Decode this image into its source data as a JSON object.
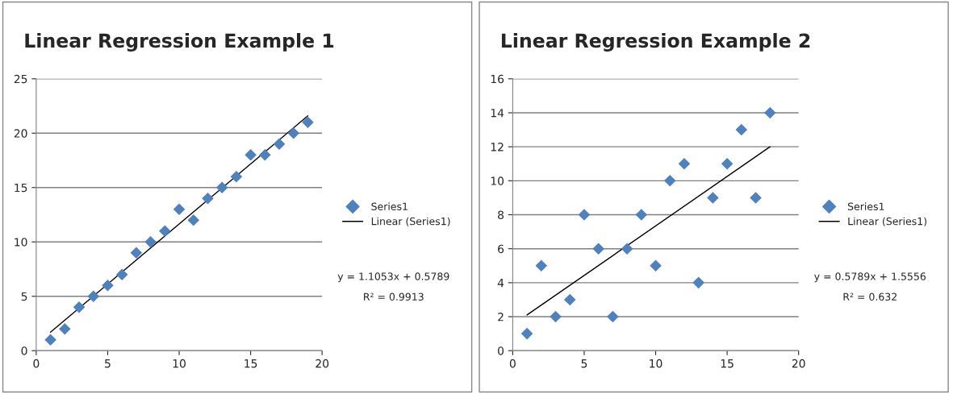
{
  "chart_data": [
    {
      "type": "scatter",
      "title": "Linear Regression Example 1",
      "x": [
        1,
        2,
        3,
        4,
        5,
        6,
        7,
        8,
        9,
        10,
        11,
        12,
        13,
        14,
        15,
        16,
        17,
        18,
        19
      ],
      "series": [
        {
          "name": "Series1",
          "color": "#4f81bd",
          "marker": "diamond",
          "values": [
            1,
            2,
            4,
            5,
            6,
            7,
            9,
            10,
            11,
            13,
            12,
            14,
            15,
            16,
            18,
            18,
            19,
            20,
            21
          ]
        },
        {
          "name": "Linear (Series1)",
          "type": "line",
          "color": "#000000",
          "line_style": "solid",
          "x": [
            1,
            19
          ],
          "values": [
            1.7,
            21.6
          ]
        }
      ],
      "xlim": [
        0,
        20
      ],
      "xticks": [
        0,
        5,
        10,
        15,
        20
      ],
      "ylim": [
        0,
        25
      ],
      "yticks": [
        0,
        5,
        10,
        15,
        20,
        25
      ],
      "grid": "y",
      "legend": "right",
      "annotations": [
        "y = 1.1053x + 0.5789",
        "R² = 0.9913"
      ]
    },
    {
      "type": "scatter",
      "title": "Linear Regression Example 2",
      "x": [
        1,
        2,
        3,
        4,
        5,
        6,
        7,
        8,
        9,
        10,
        11,
        12,
        13,
        14,
        15,
        16,
        17,
        18
      ],
      "series": [
        {
          "name": "Series1",
          "color": "#4f81bd",
          "marker": "diamond",
          "values": [
            1,
            5,
            2,
            3,
            8,
            6,
            2,
            6,
            8,
            5,
            10,
            11,
            4,
            9,
            11,
            13,
            9,
            14
          ]
        },
        {
          "name": "Linear (Series1)",
          "type": "line",
          "color": "#000000",
          "line_style": "solid",
          "x": [
            1,
            18
          ],
          "values": [
            2.1,
            12.0
          ]
        }
      ],
      "xlim": [
        0,
        20
      ],
      "xticks": [
        0,
        5,
        10,
        15,
        20
      ],
      "ylim": [
        0,
        16
      ],
      "yticks": [
        0,
        2,
        4,
        6,
        8,
        10,
        12,
        14,
        16
      ],
      "grid": "y",
      "legend": "right",
      "annotations": [
        "y = 0.5789x + 1.5556",
        "R² = 0.632"
      ]
    }
  ]
}
